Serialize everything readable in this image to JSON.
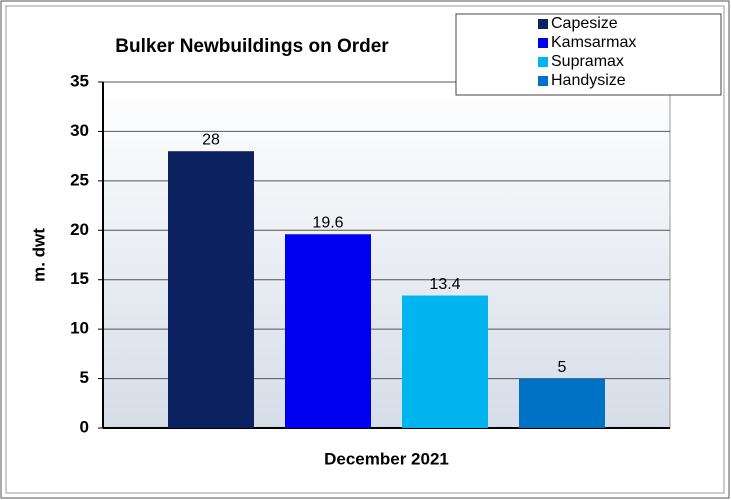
{
  "chart_data": {
    "type": "bar",
    "title": "Bulker Newbuildings on Order",
    "y_label": "m. dwt",
    "categories": [
      "December 2021"
    ],
    "series": [
      {
        "name": "Capesize",
        "color": "#0c2260",
        "values": [
          28
        ]
      },
      {
        "name": "Kamsarmax",
        "color": "#0000f0",
        "values": [
          19.6
        ]
      },
      {
        "name": "Supramax",
        "color": "#00b4f0",
        "values": [
          13.4
        ]
      },
      {
        "name": "Handysize",
        "color": "#0072c6",
        "values": [
          5
        ]
      }
    ],
    "ylim": [
      0,
      35
    ],
    "yticks": [
      0,
      5,
      10,
      15,
      20,
      25,
      30,
      35
    ],
    "grid": true,
    "legend": "top-right"
  }
}
